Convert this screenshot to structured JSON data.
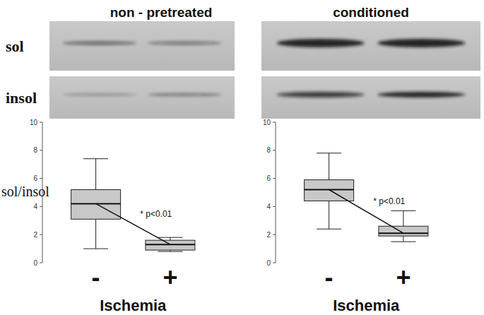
{
  "chart_data": [
    {
      "type": "box",
      "title": "non - pretreated",
      "categories": [
        "-",
        "+"
      ],
      "boxes": [
        {
          "min": 1.0,
          "q1": 3.1,
          "median": 4.2,
          "q3": 5.2,
          "max": 7.4
        },
        {
          "min": 0.8,
          "q1": 0.9,
          "median": 1.3,
          "q3": 1.6,
          "max": 1.8
        }
      ],
      "ylim": [
        0,
        10
      ],
      "yticks": [
        0,
        2,
        4,
        6,
        8,
        10
      ],
      "y_label": "sol/insol",
      "x_label": "Ischemia",
      "annotation": "* p<0.01",
      "color": "#c8c8c8"
    },
    {
      "type": "box",
      "title": "conditioned",
      "categories": [
        "-",
        "+"
      ],
      "boxes": [
        {
          "min": 2.4,
          "q1": 4.4,
          "median": 5.2,
          "q3": 5.9,
          "max": 7.8
        },
        {
          "min": 1.5,
          "q1": 1.9,
          "median": 2.1,
          "q3": 2.6,
          "max": 3.7
        }
      ],
      "ylim": [
        0,
        10
      ],
      "yticks": [
        0,
        2,
        4,
        6,
        8,
        10
      ],
      "x_label": "Ischemia",
      "annotation": "* p<0.01",
      "color": "#c8c8c8"
    }
  ],
  "blot_rows": [
    "sol",
    "insol"
  ]
}
